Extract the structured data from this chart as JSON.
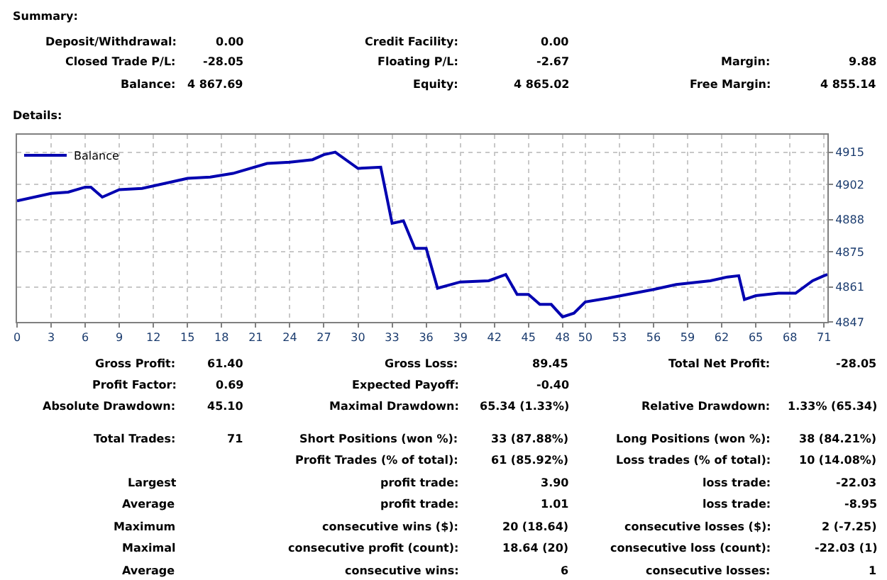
{
  "chart_data": {
    "type": "line",
    "x": [
      0,
      3,
      4.5,
      6,
      6.5,
      7.5,
      9,
      11,
      15,
      17,
      19,
      22,
      24,
      26,
      27,
      28,
      30,
      32,
      33,
      34,
      35,
      36,
      37,
      39,
      41.5,
      43,
      44,
      45,
      46,
      47,
      48,
      49,
      50,
      52,
      56,
      58,
      61,
      62.5,
      63.5,
      64,
      65,
      67,
      68.5,
      70,
      71,
      71.3
    ],
    "series": [
      {
        "name": "Balance",
        "color": "#0000b0",
        "values": [
          4895.5,
          4898.5,
          4899,
          4901,
          4901,
          4897,
          4900,
          4900.5,
          4904.5,
          4905,
          4906.5,
          4910.5,
          4911,
          4912,
          4914,
          4915,
          4908.5,
          4909,
          4886.5,
          4887.5,
          4876.5,
          4876.5,
          4860.5,
          4863,
          4863.5,
          4866,
          4858,
          4858,
          4854,
          4854,
          4849,
          4850.5,
          4855,
          4856.5,
          4860,
          4862,
          4863.5,
          4865,
          4865.5,
          4856,
          4857.5,
          4858.5,
          4858.5,
          4863.5,
          4865.5,
          4866
        ]
      }
    ],
    "xlim": [
      0,
      71.3
    ],
    "xticks": [
      0,
      3,
      6,
      9,
      12,
      15,
      18,
      21,
      24,
      27,
      30,
      33,
      36,
      39,
      42,
      45,
      48,
      50,
      53,
      56,
      59,
      62,
      65,
      68,
      71
    ],
    "ylim": [
      4847,
      4922
    ],
    "yticks": [
      4847,
      4861,
      4875,
      4888,
      4902,
      4915
    ],
    "grid": true,
    "legend": "top left",
    "line_style": "solid",
    "marker": "none",
    "annotations": [
      "Summary:",
      "Deposit/Withdrawal:",
      "0.00",
      "Credit Facility:",
      "0.00",
      "Closed Trade P/L:",
      "-28.05",
      "Floating P/L:",
      "-2.67",
      "Margin:",
      "9.88",
      "Balance:",
      "4 867.69",
      "Equity:",
      "4 865.02",
      "Free Margin:",
      "4 855.14",
      "Details:",
      "Gross Profit:",
      "61.40",
      "Gross Loss:",
      "89.45",
      "Total Net Profit:",
      "-28.05",
      "Profit Factor:",
      "0.69",
      "Expected Payoff:",
      "-0.40",
      "Absolute Drawdown:",
      "45.10",
      "Maximal Drawdown:",
      "65.34 (1.33%)",
      "Relative Drawdown:",
      "1.33% (65.34)",
      "Total Trades:",
      "71",
      "Short Positions (won %):",
      "33 (87.88%)",
      "Long Positions (won %):",
      "38 (84.21%)",
      "Profit Trades (% of total):",
      "61 (85.92%)",
      "Loss trades (% of total):",
      "10 (14.08%)",
      "Largest",
      "profit trade:",
      "3.90",
      "loss trade:",
      "-22.03",
      "Average",
      "profit trade:",
      "1.01",
      "loss trade:",
      "-8.95",
      "Maximum",
      "consecutive wins ($):",
      "20 (18.64)",
      "consecutive losses ($):",
      "2 (-7.25)",
      "Maximal",
      "consecutive profit (count):",
      "18.64 (20)",
      "consecutive loss (count):",
      "-22.03 (1)",
      "Average",
      "consecutive wins:",
      "6",
      "consecutive losses:",
      "1"
    ]
  }
}
